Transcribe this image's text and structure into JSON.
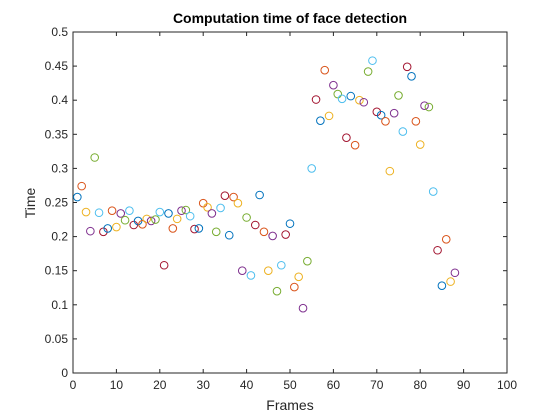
{
  "chart_data": {
    "type": "scatter",
    "title": "Computation time of face detection",
    "xlabel": "Frames",
    "ylabel": "Time",
    "xlim": [
      0,
      100
    ],
    "ylim": [
      0,
      0.5
    ],
    "xticks": [
      0,
      10,
      20,
      30,
      40,
      50,
      60,
      70,
      80,
      90,
      100
    ],
    "yticks": [
      0,
      0.05,
      0.1,
      0.15,
      0.2,
      0.25,
      0.3,
      0.35,
      0.4,
      0.45,
      0.5
    ],
    "xtick_labels": [
      "0",
      "10",
      "20",
      "30",
      "40",
      "50",
      "60",
      "70",
      "80",
      "90",
      "100"
    ],
    "ytick_labels": [
      "0",
      "0.05",
      "0.1",
      "0.15",
      "0.2",
      "0.25",
      "0.3",
      "0.35",
      "0.4",
      "0.45",
      "0.5"
    ],
    "grid": false,
    "marker": "open-circle",
    "color_cycle": [
      "#0072BD",
      "#D95319",
      "#EDB120",
      "#7E2F8E",
      "#77AC30",
      "#4DBEEE",
      "#A2142F"
    ],
    "points": [
      [
        1,
        0.258
      ],
      [
        2,
        0.274
      ],
      [
        3,
        0.236
      ],
      [
        4,
        0.208
      ],
      [
        5,
        0.316
      ],
      [
        6,
        0.235
      ],
      [
        7,
        0.207
      ],
      [
        8,
        0.212
      ],
      [
        9,
        0.238
      ],
      [
        10,
        0.214
      ],
      [
        11,
        0.234
      ],
      [
        12,
        0.224
      ],
      [
        13,
        0.238
      ],
      [
        14,
        0.217
      ],
      [
        15,
        0.223
      ],
      [
        16,
        0.218
      ],
      [
        17,
        0.226
      ],
      [
        18,
        0.223
      ],
      [
        19,
        0.225
      ],
      [
        20,
        0.236
      ],
      [
        21,
        0.158
      ],
      [
        22,
        0.234
      ],
      [
        23,
        0.212
      ],
      [
        24,
        0.226
      ],
      [
        25,
        0.238
      ],
      [
        26,
        0.239
      ],
      [
        27,
        0.23
      ],
      [
        28,
        0.211
      ],
      [
        29,
        0.212
      ],
      [
        30,
        0.249
      ],
      [
        31,
        0.243
      ],
      [
        32,
        0.234
      ],
      [
        33,
        0.207
      ],
      [
        34,
        0.242
      ],
      [
        35,
        0.26
      ],
      [
        36,
        0.202
      ],
      [
        37,
        0.258
      ],
      [
        38,
        0.249
      ],
      [
        39,
        0.15
      ],
      [
        40,
        0.228
      ],
      [
        41,
        0.143
      ],
      [
        42,
        0.217
      ],
      [
        43,
        0.261
      ],
      [
        44,
        0.207
      ],
      [
        45,
        0.15
      ],
      [
        46,
        0.201
      ],
      [
        47,
        0.12
      ],
      [
        48,
        0.158
      ],
      [
        49,
        0.203
      ],
      [
        50,
        0.219
      ],
      [
        51,
        0.126
      ],
      [
        52,
        0.141
      ],
      [
        53,
        0.095
      ],
      [
        54,
        0.164
      ],
      [
        55,
        0.3
      ],
      [
        56,
        0.401
      ],
      [
        57,
        0.37
      ],
      [
        58,
        0.444
      ],
      [
        59,
        0.377
      ],
      [
        60,
        0.422
      ],
      [
        61,
        0.409
      ],
      [
        62,
        0.402
      ],
      [
        63,
        0.345
      ],
      [
        64,
        0.406
      ],
      [
        65,
        0.334
      ],
      [
        66,
        0.4
      ],
      [
        67,
        0.397
      ],
      [
        68,
        0.442
      ],
      [
        69,
        0.458
      ],
      [
        70,
        0.383
      ],
      [
        71,
        0.378
      ],
      [
        72,
        0.369
      ],
      [
        73,
        0.296
      ],
      [
        74,
        0.381
      ],
      [
        75,
        0.407
      ],
      [
        76,
        0.354
      ],
      [
        77,
        0.449
      ],
      [
        78,
        0.435
      ],
      [
        79,
        0.369
      ],
      [
        80,
        0.335
      ],
      [
        81,
        0.392
      ],
      [
        82,
        0.39
      ],
      [
        83,
        0.266
      ],
      [
        84,
        0.18
      ],
      [
        85,
        0.128
      ],
      [
        86,
        0.196
      ],
      [
        87,
        0.134
      ],
      [
        88,
        0.147
      ]
    ]
  }
}
